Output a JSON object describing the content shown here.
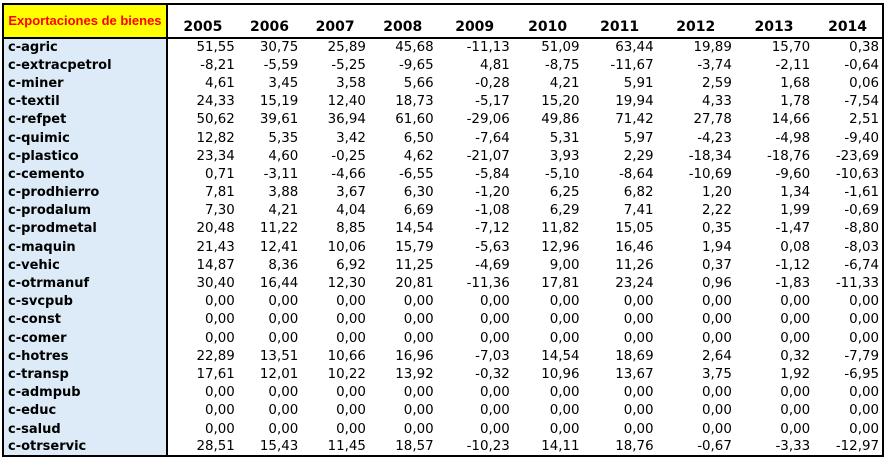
{
  "table": {
    "corner_label": "Exportaciones de bienes",
    "years": [
      "2005",
      "2006",
      "2007",
      "2008",
      "2009",
      "2010",
      "2011",
      "2012",
      "2013",
      "2014"
    ],
    "rows": [
      {
        "label": "c-agric",
        "values": [
          "51,55",
          "30,75",
          "25,89",
          "45,68",
          "-11,13",
          "51,09",
          "63,44",
          "19,89",
          "15,70",
          "0,38"
        ]
      },
      {
        "label": "c-extracpetrol",
        "values": [
          "-8,21",
          "-5,59",
          "-5,25",
          "-9,65",
          "4,81",
          "-8,75",
          "-11,67",
          "-3,74",
          "-2,11",
          "-0,64"
        ]
      },
      {
        "label": "c-miner",
        "values": [
          "4,61",
          "3,45",
          "3,58",
          "5,66",
          "-0,28",
          "4,21",
          "5,91",
          "2,59",
          "1,68",
          "0,06"
        ]
      },
      {
        "label": "c-textil",
        "values": [
          "24,33",
          "15,19",
          "12,40",
          "18,73",
          "-5,17",
          "15,20",
          "19,94",
          "4,33",
          "1,78",
          "-7,54"
        ]
      },
      {
        "label": "c-refpet",
        "values": [
          "50,62",
          "39,61",
          "36,94",
          "61,60",
          "-29,06",
          "49,86",
          "71,42",
          "27,78",
          "14,66",
          "2,51"
        ]
      },
      {
        "label": "c-quimic",
        "values": [
          "12,82",
          "5,35",
          "3,42",
          "6,50",
          "-7,64",
          "5,31",
          "5,97",
          "-4,23",
          "-4,98",
          "-9,40"
        ]
      },
      {
        "label": "c-plastico",
        "values": [
          "23,34",
          "4,60",
          "-0,25",
          "4,62",
          "-21,07",
          "3,93",
          "2,29",
          "-18,34",
          "-18,76",
          "-23,69"
        ]
      },
      {
        "label": "c-cemento",
        "values": [
          "0,71",
          "-3,11",
          "-4,66",
          "-6,55",
          "-5,84",
          "-5,10",
          "-8,64",
          "-10,69",
          "-9,60",
          "-10,63"
        ]
      },
      {
        "label": "c-prodhierro",
        "values": [
          "7,81",
          "3,88",
          "3,67",
          "6,30",
          "-1,20",
          "6,25",
          "6,82",
          "1,20",
          "1,34",
          "-1,61"
        ]
      },
      {
        "label": "c-prodalum",
        "values": [
          "7,30",
          "4,21",
          "4,04",
          "6,69",
          "-1,08",
          "6,29",
          "7,41",
          "2,22",
          "1,99",
          "-0,69"
        ]
      },
      {
        "label": "c-prodmetal",
        "values": [
          "20,48",
          "11,22",
          "8,85",
          "14,54",
          "-7,12",
          "11,82",
          "15,05",
          "0,35",
          "-1,47",
          "-8,80"
        ]
      },
      {
        "label": "c-maquin",
        "values": [
          "21,43",
          "12,41",
          "10,06",
          "15,79",
          "-5,63",
          "12,96",
          "16,46",
          "1,94",
          "0,08",
          "-8,03"
        ]
      },
      {
        "label": "c-vehic",
        "values": [
          "14,87",
          "8,36",
          "6,92",
          "11,25",
          "-4,69",
          "9,00",
          "11,26",
          "0,37",
          "-1,12",
          "-6,74"
        ]
      },
      {
        "label": "c-otrmanuf",
        "values": [
          "30,40",
          "16,44",
          "12,30",
          "20,81",
          "-11,36",
          "17,81",
          "23,24",
          "0,96",
          "-1,83",
          "-11,33"
        ]
      },
      {
        "label": "c-svcpub",
        "values": [
          "0,00",
          "0,00",
          "0,00",
          "0,00",
          "0,00",
          "0,00",
          "0,00",
          "0,00",
          "0,00",
          "0,00"
        ]
      },
      {
        "label": "c-const",
        "values": [
          "0,00",
          "0,00",
          "0,00",
          "0,00",
          "0,00",
          "0,00",
          "0,00",
          "0,00",
          "0,00",
          "0,00"
        ]
      },
      {
        "label": "c-comer",
        "values": [
          "0,00",
          "0,00",
          "0,00",
          "0,00",
          "0,00",
          "0,00",
          "0,00",
          "0,00",
          "0,00",
          "0,00"
        ]
      },
      {
        "label": "c-hotres",
        "values": [
          "22,89",
          "13,51",
          "10,66",
          "16,96",
          "-7,03",
          "14,54",
          "18,69",
          "2,64",
          "0,32",
          "-7,79"
        ]
      },
      {
        "label": "c-transp",
        "values": [
          "17,61",
          "12,01",
          "10,22",
          "13,92",
          "-0,32",
          "10,96",
          "13,67",
          "3,75",
          "1,92",
          "-6,95"
        ]
      },
      {
        "label": "c-admpub",
        "values": [
          "0,00",
          "0,00",
          "0,00",
          "0,00",
          "0,00",
          "0,00",
          "0,00",
          "0,00",
          "0,00",
          "0,00"
        ]
      },
      {
        "label": "c-educ",
        "values": [
          "0,00",
          "0,00",
          "0,00",
          "0,00",
          "0,00",
          "0,00",
          "0,00",
          "0,00",
          "0,00",
          "0,00"
        ]
      },
      {
        "label": "c-salud",
        "values": [
          "0,00",
          "0,00",
          "0,00",
          "0,00",
          "0,00",
          "0,00",
          "0,00",
          "0,00",
          "0,00",
          "0,00"
        ]
      },
      {
        "label": "c-otrservic",
        "values": [
          "28,51",
          "15,43",
          "11,45",
          "18,57",
          "-10,23",
          "14,11",
          "18,76",
          "-0,67",
          "-3,33",
          "-12,97"
        ]
      }
    ]
  },
  "colors": {
    "corner_bg": "#ffff00",
    "corner_text": "#ff0000",
    "label_bg": "#dcebf7",
    "border": "#000000"
  }
}
